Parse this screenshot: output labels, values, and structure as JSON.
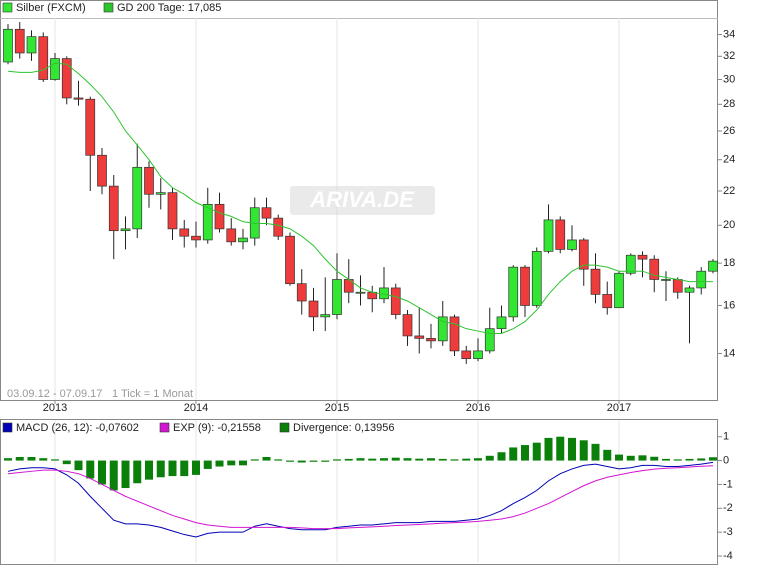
{
  "chart_data": [
    {
      "type": "candlestick",
      "categories": [
        null,
        null,
        null,
        null,
        "2013",
        null,
        null,
        null,
        null,
        null,
        null,
        null,
        null,
        null,
        null,
        null,
        "2014",
        null,
        null,
        null,
        null,
        null,
        null,
        null,
        null,
        null,
        null,
        null,
        "2015",
        null,
        null,
        null,
        null,
        null,
        null,
        null,
        null,
        null,
        null,
        null,
        "2016",
        null,
        null,
        null,
        null,
        null,
        null,
        null,
        null,
        null,
        null,
        null,
        "2017",
        null,
        null,
        null,
        null,
        null,
        null,
        null,
        null
      ],
      "series": [
        {
          "name": "Silber (FXCM)",
          "up_color": "#33e633",
          "down_color": "#ee3b3b",
          "open": [
            31.5,
            34.5,
            32.3,
            33.8,
            30.0,
            31.8,
            28.5,
            28.4,
            24.3,
            22.3,
            19.7,
            19.8,
            23.5,
            21.8,
            21.9,
            19.8,
            19.4,
            19.2,
            21.2,
            19.8,
            19.1,
            19.3,
            21.0,
            20.4,
            19.4,
            17.0,
            16.2,
            15.5,
            15.6,
            17.2,
            16.6,
            16.6,
            16.3,
            16.8,
            15.6,
            14.7,
            14.6,
            14.5,
            15.5,
            14.1,
            13.8,
            14.1,
            15.0,
            15.5,
            17.8,
            16.0,
            18.6,
            20.3,
            18.7,
            19.2,
            17.7,
            16.5,
            15.9,
            17.5,
            18.4,
            18.2,
            17.2,
            17.2,
            16.6,
            16.8,
            17.6
          ],
          "high": [
            35.0,
            35.2,
            34.4,
            34.2,
            32.3,
            32.0,
            29.9,
            28.6,
            24.8,
            23.0,
            20.5,
            25.1,
            23.9,
            22.8,
            22.2,
            20.3,
            20.2,
            22.2,
            21.9,
            20.4,
            19.8,
            21.6,
            21.6,
            20.6,
            19.6,
            17.7,
            16.8,
            17.3,
            18.5,
            18.2,
            17.4,
            16.9,
            17.8,
            17.0,
            15.8,
            15.9,
            15.2,
            16.2,
            15.6,
            14.3,
            14.6,
            15.9,
            16.0,
            17.9,
            17.9,
            18.8,
            21.2,
            20.5,
            20.0,
            19.3,
            18.5,
            17.1,
            17.6,
            18.5,
            18.6,
            18.4,
            17.6,
            17.3,
            16.9,
            17.8,
            18.2
          ],
          "low": [
            31.3,
            31.8,
            31.6,
            29.8,
            29.9,
            28.0,
            27.9,
            22.0,
            21.8,
            18.2,
            18.7,
            19.3,
            21.0,
            20.9,
            19.2,
            18.8,
            18.8,
            19.0,
            19.6,
            18.9,
            18.7,
            18.9,
            20.0,
            19.2,
            16.9,
            15.6,
            14.9,
            14.9,
            15.4,
            16.1,
            16.0,
            15.7,
            16.1,
            15.4,
            14.3,
            14.0,
            14.2,
            14.3,
            13.9,
            13.6,
            13.7,
            14.0,
            14.8,
            15.3,
            15.5,
            15.9,
            18.5,
            18.5,
            18.6,
            16.9,
            16.1,
            15.6,
            15.9,
            17.4,
            17.3,
            16.6,
            16.2,
            16.3,
            14.4,
            16.5,
            17.5
          ],
          "close": [
            34.5,
            32.3,
            33.8,
            30.0,
            31.8,
            28.5,
            28.4,
            24.3,
            22.3,
            19.7,
            19.8,
            23.5,
            21.8,
            21.9,
            19.8,
            19.4,
            19.2,
            21.2,
            19.8,
            19.1,
            19.3,
            21.0,
            20.4,
            19.4,
            17.0,
            16.2,
            15.5,
            15.6,
            17.2,
            16.6,
            16.6,
            16.3,
            16.8,
            15.6,
            14.7,
            14.6,
            14.5,
            15.5,
            14.1,
            13.8,
            14.1,
            15.0,
            15.5,
            17.8,
            16.0,
            18.6,
            20.3,
            18.7,
            19.2,
            17.7,
            16.5,
            15.9,
            17.5,
            18.4,
            18.2,
            17.2,
            17.2,
            16.6,
            16.8,
            17.6,
            18.1
          ]
        },
        {
          "name": "GD 200 Tage: 17,085",
          "color": "#2ec42e",
          "values": [
            30.7,
            30.6,
            30.6,
            30.8,
            31.4,
            31.3,
            30.5,
            29.6,
            28.6,
            27.4,
            26.0,
            25.0,
            24.0,
            22.9,
            22.2,
            21.8,
            21.3,
            21.0,
            20.7,
            20.5,
            20.2,
            20.1,
            20.1,
            20.0,
            19.8,
            19.4,
            18.9,
            18.2,
            17.6,
            17.2,
            16.8,
            16.6,
            16.5,
            16.4,
            16.2,
            15.9,
            15.6,
            15.3,
            15.2,
            15.0,
            14.9,
            14.8,
            14.8,
            15.0,
            15.3,
            15.8,
            16.5,
            17.1,
            17.6,
            17.9,
            17.9,
            17.8,
            17.6,
            17.6,
            17.6,
            17.4,
            17.3,
            17.2,
            17.1,
            17.1,
            17.1
          ]
        }
      ],
      "ylim": [
        12.3,
        35.6
      ],
      "yticks": [
        14,
        16,
        18,
        20,
        22,
        24,
        26,
        28,
        30,
        32,
        34
      ],
      "log_scale": true,
      "grid": true,
      "annotations": [
        "03.09.12 - 07.09.17",
        "1 Tick = 1 Monat"
      ],
      "watermark": "ARIVA.DE"
    },
    {
      "type": "macd",
      "series": [
        {
          "name": "MACD (26, 12): -0,07602",
          "color": "#0000b4",
          "kind": "line",
          "values": [
            -0.45,
            -0.35,
            -0.3,
            -0.3,
            -0.35,
            -0.6,
            -0.95,
            -1.5,
            -2.0,
            -2.5,
            -2.65,
            -2.65,
            -2.7,
            -2.8,
            -2.95,
            -3.1,
            -3.2,
            -3.05,
            -3.0,
            -3.0,
            -3.0,
            -2.75,
            -2.65,
            -2.75,
            -2.85,
            -2.9,
            -2.9,
            -2.9,
            -2.8,
            -2.75,
            -2.7,
            -2.7,
            -2.65,
            -2.6,
            -2.6,
            -2.6,
            -2.55,
            -2.55,
            -2.55,
            -2.5,
            -2.45,
            -2.3,
            -2.1,
            -1.8,
            -1.55,
            -1.25,
            -0.85,
            -0.55,
            -0.35,
            -0.2,
            -0.15,
            -0.25,
            -0.35,
            -0.3,
            -0.2,
            -0.2,
            -0.25,
            -0.25,
            -0.2,
            -0.15,
            -0.07602
          ]
        },
        {
          "name": "EXP (9): -0,21558",
          "color": "#d214d2",
          "kind": "line",
          "values": [
            -0.55,
            -0.5,
            -0.45,
            -0.4,
            -0.4,
            -0.45,
            -0.55,
            -0.75,
            -1.0,
            -1.25,
            -1.5,
            -1.7,
            -1.9,
            -2.1,
            -2.3,
            -2.45,
            -2.6,
            -2.7,
            -2.75,
            -2.8,
            -2.8,
            -2.8,
            -2.8,
            -2.8,
            -2.8,
            -2.82,
            -2.85,
            -2.85,
            -2.85,
            -2.82,
            -2.8,
            -2.78,
            -2.75,
            -2.72,
            -2.7,
            -2.68,
            -2.65,
            -2.62,
            -2.6,
            -2.58,
            -2.55,
            -2.5,
            -2.45,
            -2.35,
            -2.2,
            -2.0,
            -1.8,
            -1.55,
            -1.3,
            -1.05,
            -0.85,
            -0.7,
            -0.6,
            -0.5,
            -0.42,
            -0.36,
            -0.32,
            -0.3,
            -0.27,
            -0.24,
            -0.21558
          ]
        },
        {
          "name": "Divergence: 0,13956",
          "color": "#0a800a",
          "kind": "bar",
          "values": [
            0.1,
            0.15,
            0.15,
            0.1,
            0.05,
            -0.15,
            -0.4,
            -0.75,
            -1.0,
            -1.25,
            -1.15,
            -0.95,
            -0.8,
            -0.7,
            -0.65,
            -0.65,
            -0.6,
            -0.35,
            -0.25,
            -0.2,
            -0.2,
            0.05,
            0.15,
            0.05,
            -0.05,
            -0.08,
            -0.05,
            -0.05,
            0.05,
            0.07,
            0.1,
            0.08,
            0.1,
            0.12,
            0.1,
            0.08,
            0.1,
            0.07,
            0.05,
            0.08,
            0.1,
            0.2,
            0.35,
            0.55,
            0.65,
            0.75,
            0.95,
            1.0,
            0.95,
            0.85,
            0.7,
            0.45,
            0.25,
            0.2,
            0.22,
            0.16,
            0.07,
            0.05,
            0.07,
            0.09,
            0.13956
          ]
        }
      ],
      "ylim": [
        -4.25,
        1.7
      ],
      "yticks": [
        1,
        0,
        -1,
        -2,
        -3,
        -4
      ],
      "grid": true
    }
  ]
}
